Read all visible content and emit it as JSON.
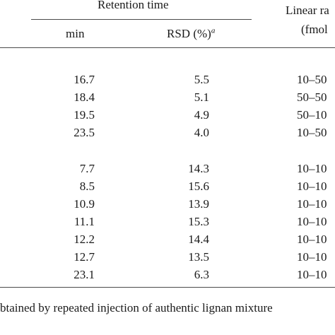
{
  "table": {
    "group_header": "Retention time",
    "header_linear_line1": "Linear ra",
    "header_linear_line2": "(fmol",
    "col_min": "min",
    "col_rsd": "RSD (%)",
    "col_rsd_sup": "a",
    "rows": [
      {
        "min": "16.7",
        "rsd": "5.5",
        "linear": "10–50"
      },
      {
        "min": "18.4",
        "rsd": "5.1",
        "linear": "50–50"
      },
      {
        "min": "19.5",
        "rsd": "4.9",
        "linear": "50–10"
      },
      {
        "min": "23.5",
        "rsd": "4.0",
        "linear": "10–50"
      },
      {
        "min": "7.7",
        "rsd": "14.3",
        "linear": "10–10"
      },
      {
        "min": "8.5",
        "rsd": "15.6",
        "linear": "10–10"
      },
      {
        "min": "10.9",
        "rsd": "13.9",
        "linear": "10–10"
      },
      {
        "min": "11.1",
        "rsd": "15.3",
        "linear": "10–10"
      },
      {
        "min": "12.2",
        "rsd": "14.4",
        "linear": "10–10"
      },
      {
        "min": "12.7",
        "rsd": "13.5",
        "linear": "10–10"
      },
      {
        "min": "23.1",
        "rsd": "6.3",
        "linear": "10–10"
      }
    ],
    "footnote": "btained by repeated injection of authentic lignan mixture"
  }
}
